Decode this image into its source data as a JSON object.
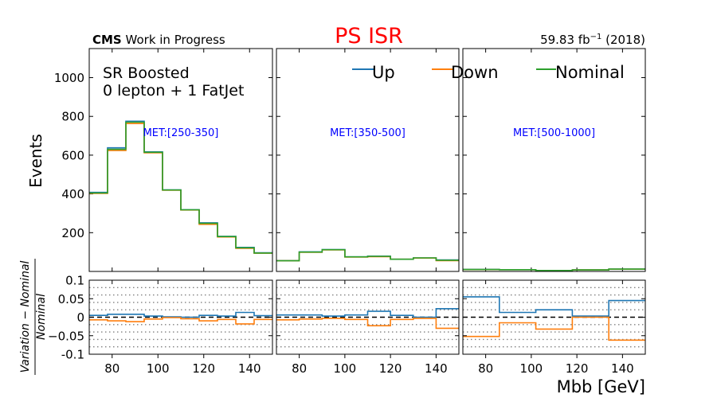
{
  "header": {
    "cms_bold": "CMS",
    "cms_rest": " Work in Progress",
    "title": "PS ISR",
    "lumi_value": "59.83 fb",
    "lumi_sup": "−1",
    "lumi_year": " (2018)"
  },
  "region": {
    "line1": "SR Boosted",
    "line2": "0 lepton + 1 FatJet"
  },
  "colors": {
    "up": "#1f77b4",
    "down": "#ff7f0e",
    "nominal": "#2ca02c",
    "title": "#ff0000",
    "met_label": "#0000ff"
  },
  "chart_data": {
    "type": "line",
    "drawstyle": "step",
    "xlabel": "Mbb [GeV]",
    "ylabel_top": "Events",
    "ylabel_bottom_num": "Variation − Nominal",
    "ylabel_bottom_den": "Nominal",
    "xlim": [
      70,
      150
    ],
    "ylim_top": [
      0,
      1150
    ],
    "ylim_bottom": [
      -0.1,
      0.1
    ],
    "x_ticks": [
      80,
      100,
      120,
      140
    ],
    "x_tick_labels": [
      "80",
      "100",
      "120",
      "140"
    ],
    "y_ticks_top": [
      200,
      400,
      600,
      800,
      1000
    ],
    "y_tick_labels_top": [
      "200",
      "400",
      "600",
      "800",
      "1000"
    ],
    "y_ticks_bottom": [
      0.1,
      0.05,
      0,
      -0.05,
      -0.1
    ],
    "y_tick_labels_bottom": [
      "0.1",
      "0.05",
      "0",
      "−0.05",
      "-0.1"
    ],
    "grid_bottom": [
      0.08,
      0.06,
      0.04,
      0.02,
      -0.02,
      -0.04,
      -0.06,
      -0.08
    ],
    "legend": {
      "placement": "top",
      "entries": [
        "Up",
        "Down",
        "Nominal"
      ]
    },
    "panels": [
      {
        "met_label": "MET:[250-350]",
        "bin_edges": [
          70,
          78,
          86,
          94,
          102,
          110,
          118,
          126,
          134,
          142,
          150
        ],
        "nominal": [
          405,
          630,
          770,
          615,
          420,
          318,
          248,
          180,
          122,
          95
        ],
        "up": [
          408,
          638,
          775,
          617,
          421,
          318,
          251,
          181,
          124,
          96
        ],
        "down": [
          403,
          624,
          763,
          612,
          419,
          317,
          243,
          178,
          119,
          94
        ],
        "ratio_up": [
          0.005,
          0.008,
          0.008,
          0.003,
          0.001,
          0.0,
          0.005,
          0.003,
          0.013,
          0.004
        ],
        "ratio_down": [
          -0.007,
          -0.01,
          -0.012,
          -0.005,
          -0.001,
          -0.004,
          -0.01,
          -0.006,
          -0.018,
          -0.006
        ]
      },
      {
        "met_label": "MET:[350-500]",
        "bin_edges": [
          70,
          80,
          90,
          100,
          110,
          120,
          130,
          140,
          150
        ],
        "nominal": [
          55,
          100,
          112,
          75,
          78,
          63,
          70,
          58
        ],
        "up": [
          56,
          101,
          113,
          75,
          79,
          63,
          70,
          59
        ],
        "down": [
          55,
          99,
          111,
          74,
          76,
          63,
          69,
          56
        ],
        "ratio_up": [
          0.006,
          0.006,
          0.003,
          0.006,
          0.016,
          0.005,
          0.0,
          0.023
        ],
        "ratio_down": [
          -0.007,
          -0.005,
          -0.003,
          -0.006,
          -0.023,
          -0.006,
          -0.003,
          -0.03
        ]
      },
      {
        "met_label": "MET:[500-1000]",
        "bin_edges": [
          70,
          86,
          102,
          118,
          134,
          150
        ],
        "nominal": [
          10,
          9,
          5,
          8,
          12
        ],
        "up": [
          10.5,
          9.1,
          5.1,
          8.1,
          12.5
        ],
        "down": [
          9.5,
          8.9,
          4.9,
          7.9,
          11.3
        ],
        "ratio_up": [
          0.055,
          0.013,
          0.02,
          0.003,
          0.045
        ],
        "ratio_down": [
          -0.052,
          -0.015,
          -0.032,
          0.0,
          -0.062
        ]
      }
    ]
  }
}
